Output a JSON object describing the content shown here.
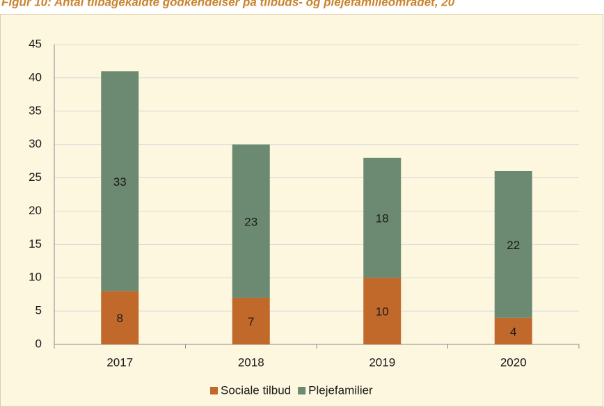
{
  "chart_data": {
    "type": "stacked_bar",
    "title": "Figur 10: Antal tilbagekaldte godkendelser på tilbuds- og plejefamilieområdet, 20",
    "categories": [
      "2017",
      "2018",
      "2019",
      "2020"
    ],
    "series": [
      {
        "name": "Sociale tilbud",
        "color": "#c0692b",
        "values": [
          8,
          7,
          10,
          4
        ]
      },
      {
        "name": "Plejefamilier",
        "color": "#6c8a72",
        "values": [
          33,
          23,
          18,
          22
        ]
      }
    ],
    "ylim": [
      0,
      45
    ],
    "yticks": [
      0,
      5,
      10,
      15,
      20,
      25,
      30,
      35,
      40,
      45
    ],
    "grid": true,
    "legend": "bottom"
  }
}
